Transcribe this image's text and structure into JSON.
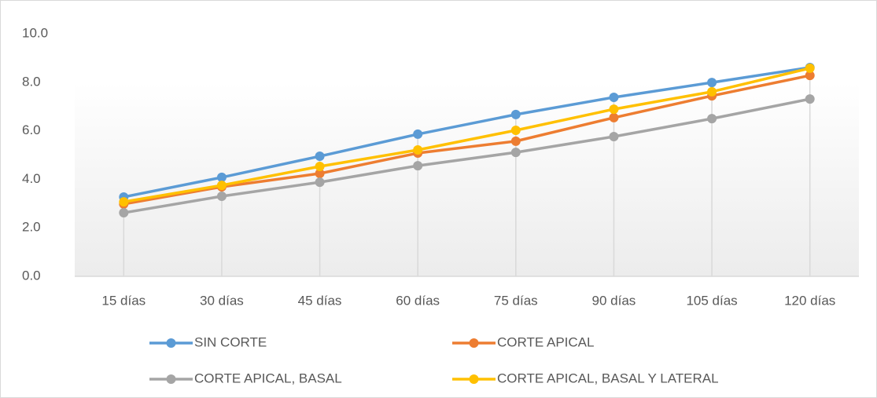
{
  "chart_data": {
    "type": "line",
    "categories": [
      "15 días",
      "30 días",
      "45 días",
      "60 días",
      "75 días",
      "90 días",
      "105 días",
      "120 días"
    ],
    "series": [
      {
        "name": "SIN CORTE",
        "color": "#5b9bd5",
        "values": [
          3.27,
          4.08,
          4.95,
          5.86,
          6.67,
          7.38,
          7.99,
          8.61
        ]
      },
      {
        "name": "CORTE APICAL",
        "color": "#ed7d31",
        "values": [
          2.98,
          3.69,
          4.24,
          5.08,
          5.57,
          6.54,
          7.44,
          8.28
        ]
      },
      {
        "name": "CORTE APICAL, BASAL",
        "color": "#a5a5a5",
        "values": [
          2.62,
          3.3,
          3.88,
          4.56,
          5.11,
          5.76,
          6.5,
          7.31
        ]
      },
      {
        "name": "CORTE APICAL, BASAL Y LATERAL",
        "color": "#ffc000",
        "values": [
          3.07,
          3.75,
          4.53,
          5.21,
          6.02,
          6.89,
          7.61,
          8.58
        ]
      }
    ],
    "ylim": [
      0,
      10
    ],
    "yticks": [
      {
        "value": 0,
        "label": "0.0"
      },
      {
        "value": 2,
        "label": "2.0"
      },
      {
        "value": 4,
        "label": "4.0"
      },
      {
        "value": 6,
        "label": "6.0"
      },
      {
        "value": 8,
        "label": "8.0"
      },
      {
        "value": 10,
        "label": "10.0"
      }
    ],
    "grid": false,
    "drop_lines": true,
    "legend": "bottom"
  }
}
